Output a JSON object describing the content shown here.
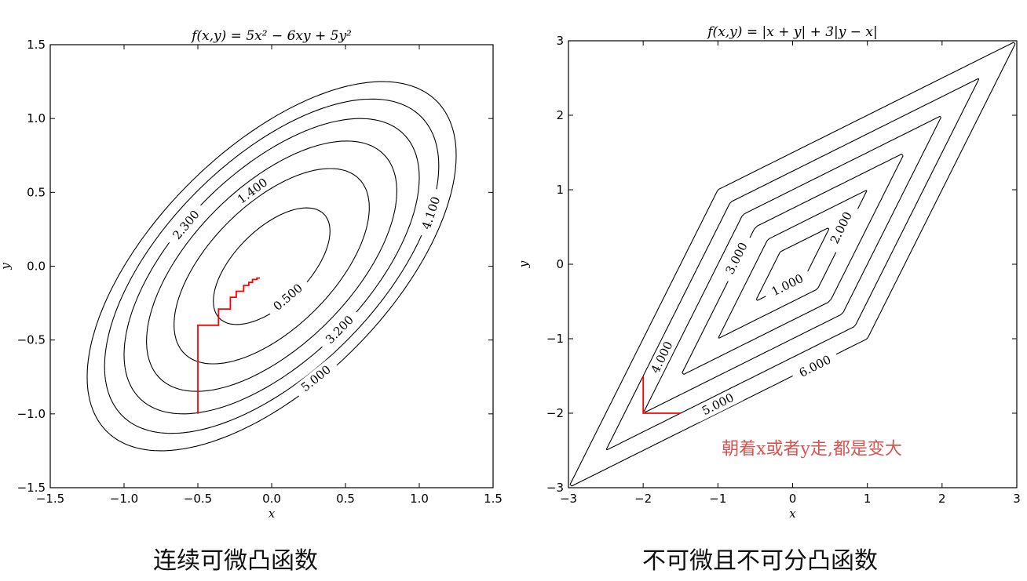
{
  "captions": {
    "left": "连续可微凸函数",
    "right": "不可微且不可分凸函数"
  },
  "chart_data": [
    {
      "type": "contour",
      "title": "f(x,y) = 5x² − 6xy + 5y²",
      "xlabel": "x",
      "ylabel": "y",
      "xlim": [
        -1.5,
        1.5
      ],
      "ylim": [
        -1.5,
        1.5
      ],
      "xticks": [
        -1.5,
        -1.0,
        -0.5,
        0.0,
        0.5,
        1.0,
        1.5
      ],
      "yticks": [
        -1.5,
        -1.0,
        -0.5,
        0.0,
        0.5,
        1.0,
        1.5
      ],
      "xtick_labels": [
        "−1.5",
        "−1.0",
        "−0.5",
        "0.0",
        "0.5",
        "1.0",
        "1.5"
      ],
      "ytick_labels": [
        "−1.5",
        "−1.0",
        "−0.5",
        "0.0",
        "0.5",
        "1.0",
        "1.5"
      ],
      "levels": [
        0.5,
        1.4,
        2.3,
        3.2,
        4.1,
        5.0
      ],
      "level_labels": [
        {
          "text": "0.500",
          "level": 0.5,
          "at": [
            0.11,
            -0.21
          ]
        },
        {
          "text": "1.400",
          "level": 1.4,
          "at": [
            -0.13,
            0.51
          ]
        },
        {
          "text": "2.300",
          "level": 2.3,
          "at": [
            -0.58,
            0.28
          ]
        },
        {
          "text": "3.200",
          "level": 3.2,
          "at": [
            0.46,
            -0.43
          ]
        },
        {
          "text": "4.100",
          "level": 4.1,
          "at": [
            1.08,
            0.36
          ]
        },
        {
          "text": "5.000",
          "level": 5.0,
          "at": [
            0.3,
            -0.76
          ]
        }
      ],
      "path": {
        "color": "#ff0000",
        "x": [
          -0.5,
          -0.5,
          -0.36,
          -0.36,
          -0.28,
          -0.28,
          -0.24,
          -0.24,
          -0.19,
          -0.19,
          -0.155,
          -0.155,
          -0.13,
          -0.13,
          -0.1,
          -0.1,
          -0.08
        ],
        "y": [
          -1.0,
          -0.4,
          -0.4,
          -0.29,
          -0.29,
          -0.21,
          -0.21,
          -0.17,
          -0.17,
          -0.13,
          -0.13,
          -0.11,
          -0.11,
          -0.09,
          -0.09,
          -0.08,
          -0.08
        ]
      }
    },
    {
      "type": "contour",
      "title": "f(x,y) = |x + y| + 3|y − x|",
      "xlabel": "x",
      "ylabel": "y",
      "xlim": [
        -3,
        3
      ],
      "ylim": [
        -3,
        3
      ],
      "xticks": [
        -3,
        -2,
        -1,
        0,
        1,
        2,
        3
      ],
      "yticks": [
        -3,
        -2,
        -1,
        0,
        1,
        2,
        3
      ],
      "xtick_labels": [
        "−3",
        "−2",
        "−1",
        "0",
        "1",
        "2",
        "3"
      ],
      "ytick_labels": [
        "−3",
        "−2",
        "−1",
        "0",
        "1",
        "2",
        "3"
      ],
      "levels": [
        1.0,
        2.0,
        3.0,
        4.0,
        5.0,
        6.0
      ],
      "level_labels": [
        {
          "text": "1.000",
          "level": 1.0,
          "at": [
            -0.07,
            -0.28
          ]
        },
        {
          "text": "2.000",
          "level": 2.0,
          "at": [
            0.65,
            0.49
          ]
        },
        {
          "text": "3.000",
          "level": 3.0,
          "at": [
            -0.75,
            0.08
          ]
        },
        {
          "text": "4.000",
          "level": 4.0,
          "at": [
            -1.75,
            -1.25
          ]
        },
        {
          "text": "5.000",
          "level": 5.0,
          "at": [
            -1.0,
            -1.88
          ]
        },
        {
          "text": "6.000",
          "level": 6.0,
          "at": [
            0.3,
            -1.37
          ]
        }
      ],
      "path": {
        "color": "#ff0000",
        "x": [
          -2.0,
          -2.0,
          -1.5
        ],
        "y": [
          -1.5,
          -2.0,
          -2.0
        ]
      },
      "annotation": {
        "text": "朝着x或者y走,都是变大",
        "at": [
          -0.95,
          -2.55
        ],
        "color": "#d9534f"
      }
    }
  ]
}
